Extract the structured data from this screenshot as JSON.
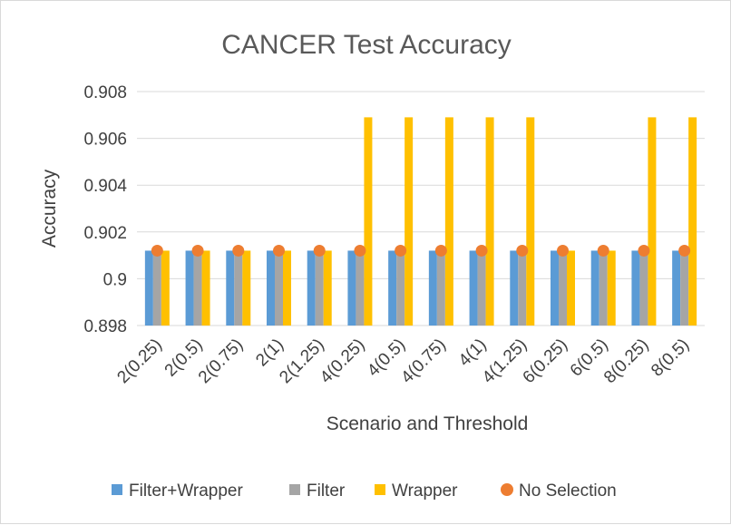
{
  "chart_data": {
    "type": "bar",
    "title": "CANCER Test Accuracy",
    "xlabel": "Scenario and Threshold",
    "ylabel": "Accuracy",
    "categories": [
      "2(0.25)",
      "2(0.5)",
      "2(0.75)",
      "2(1)",
      "2(1.25)",
      "4(0.25)",
      "4(0.5)",
      "4(0.75)",
      "4(1)",
      "4(1.25)",
      "6(0.25)",
      "6(0.5)",
      "8(0.25)",
      "8(0.5)"
    ],
    "series": [
      {
        "name": "Filter+Wrapper",
        "kind": "bar",
        "color": "#5b9bd5",
        "values": [
          0.9012,
          0.9012,
          0.9012,
          0.9012,
          0.9012,
          0.9012,
          0.9012,
          0.9012,
          0.9012,
          0.9012,
          0.9012,
          0.9012,
          0.9012,
          0.9012
        ]
      },
      {
        "name": "Filter",
        "kind": "bar",
        "color": "#a5a5a5",
        "values": [
          0.9012,
          0.9012,
          0.9012,
          0.9012,
          0.9012,
          0.9012,
          0.9012,
          0.9012,
          0.9012,
          0.9012,
          0.9012,
          0.9012,
          0.9012,
          0.9012
        ]
      },
      {
        "name": "Wrapper",
        "kind": "bar",
        "color": "#ffc000",
        "values": [
          0.9012,
          0.9012,
          0.9012,
          0.9012,
          0.9012,
          0.9069,
          0.9069,
          0.9069,
          0.9069,
          0.9069,
          0.9012,
          0.9012,
          0.9069,
          0.9069
        ]
      },
      {
        "name": "No Selection",
        "kind": "marker",
        "color": "#ed7d31",
        "values": [
          0.9012,
          0.9012,
          0.9012,
          0.9012,
          0.9012,
          0.9012,
          0.9012,
          0.9012,
          0.9012,
          0.9012,
          0.9012,
          0.9012,
          0.9012,
          0.9012
        ]
      }
    ],
    "ylim": [
      0.898,
      0.908
    ],
    "yticks": [
      0.898,
      0.9,
      0.902,
      0.904,
      0.906,
      0.908
    ],
    "ytick_labels": [
      "0.898",
      "0.9",
      "0.902",
      "0.904",
      "0.906",
      "0.908"
    ],
    "grid": true,
    "legend_position": "bottom"
  }
}
